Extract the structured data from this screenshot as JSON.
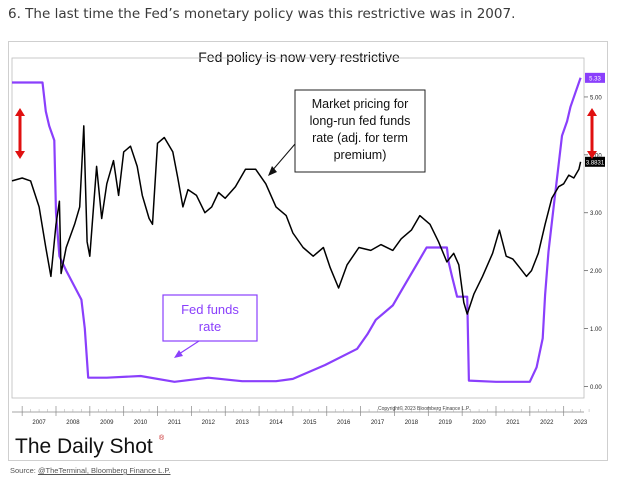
{
  "headline": "6. The last time the Fed’s monetary policy was this restrictive was in 2007.",
  "source_prefix": "Source: ",
  "source_links": "@TheTerminal, Bloomberg Finance L.P.",
  "brand": "The Daily Shot",
  "brand_mark": "®",
  "copyright": "Copyright© 2023 Bloomberg Finance L.P.",
  "chart_data": {
    "type": "line",
    "title": "Fed policy is now very restrictive",
    "xlabel": "",
    "ylabel": "",
    "xlim": [
      2006.7,
      2023.6
    ],
    "ylim": [
      -0.2,
      5.5
    ],
    "x_ticks": [
      "2007",
      "2008",
      "2009",
      "2010",
      "2011",
      "2012",
      "2013",
      "2014",
      "2015",
      "2016",
      "2017",
      "2018",
      "2019",
      "2020",
      "2021",
      "2022",
      "2023"
    ],
    "y_ticks": [
      "0.00",
      "1.00",
      "2.00",
      "3.00",
      "4.00",
      "5.00"
    ],
    "grid": false,
    "annotations": [
      {
        "id": "market",
        "text": "Market pricing for long-run fed funds rate (adj. for term premium)",
        "lines": [
          "Market pricing for",
          "long-run fed funds",
          "rate (adj. for term",
          "premium)"
        ]
      },
      {
        "id": "ffr",
        "text": "Fed funds rate",
        "lines": [
          "Fed funds",
          "rate"
        ]
      }
    ],
    "end_labels": [
      {
        "series": "Fed funds rate",
        "text": "5.33"
      },
      {
        "series": "Market pricing",
        "text": "3.8831"
      }
    ],
    "series": [
      {
        "name": "Fed funds rate",
        "color": "#8a3ffc",
        "points": [
          [
            2006.7,
            5.25
          ],
          [
            2007.6,
            5.25
          ],
          [
            2007.7,
            4.75
          ],
          [
            2007.8,
            4.5
          ],
          [
            2007.95,
            4.25
          ],
          [
            2008.0,
            3.0
          ],
          [
            2008.1,
            2.25
          ],
          [
            2008.3,
            2.0
          ],
          [
            2008.75,
            1.5
          ],
          [
            2008.85,
            1.0
          ],
          [
            2008.95,
            0.15
          ],
          [
            2009.5,
            0.15
          ],
          [
            2010.5,
            0.18
          ],
          [
            2011.5,
            0.08
          ],
          [
            2012.5,
            0.15
          ],
          [
            2013.5,
            0.09
          ],
          [
            2014.5,
            0.09
          ],
          [
            2015.0,
            0.13
          ],
          [
            2015.95,
            0.37
          ],
          [
            2016.9,
            0.65
          ],
          [
            2017.2,
            0.9
          ],
          [
            2017.45,
            1.15
          ],
          [
            2017.95,
            1.4
          ],
          [
            2018.2,
            1.65
          ],
          [
            2018.45,
            1.9
          ],
          [
            2018.7,
            2.15
          ],
          [
            2018.95,
            2.4
          ],
          [
            2019.55,
            2.4
          ],
          [
            2019.6,
            2.15
          ],
          [
            2019.7,
            1.9
          ],
          [
            2019.85,
            1.55
          ],
          [
            2020.15,
            1.55
          ],
          [
            2020.2,
            0.1
          ],
          [
            2021.0,
            0.08
          ],
          [
            2022.0,
            0.08
          ],
          [
            2022.2,
            0.33
          ],
          [
            2022.38,
            0.83
          ],
          [
            2022.45,
            1.58
          ],
          [
            2022.55,
            2.33
          ],
          [
            2022.7,
            3.08
          ],
          [
            2022.85,
            3.83
          ],
          [
            2022.95,
            4.33
          ],
          [
            2023.1,
            4.58
          ],
          [
            2023.2,
            4.83
          ],
          [
            2023.35,
            5.08
          ],
          [
            2023.5,
            5.33
          ]
        ]
      },
      {
        "name": "Market pricing for long-run fed funds rate (adj. for term premium)",
        "color": "#000000",
        "points": [
          [
            2006.7,
            3.55
          ],
          [
            2007.0,
            3.6
          ],
          [
            2007.25,
            3.55
          ],
          [
            2007.5,
            3.1
          ],
          [
            2007.7,
            2.4
          ],
          [
            2007.85,
            1.9
          ],
          [
            2008.0,
            2.8
          ],
          [
            2008.1,
            3.2
          ],
          [
            2008.15,
            1.95
          ],
          [
            2008.3,
            2.4
          ],
          [
            2008.55,
            2.8
          ],
          [
            2008.7,
            3.1
          ],
          [
            2008.82,
            4.5
          ],
          [
            2008.92,
            2.5
          ],
          [
            2009.0,
            2.25
          ],
          [
            2009.2,
            3.8
          ],
          [
            2009.35,
            2.9
          ],
          [
            2009.5,
            3.5
          ],
          [
            2009.7,
            3.9
          ],
          [
            2009.85,
            3.3
          ],
          [
            2010.0,
            4.05
          ],
          [
            2010.2,
            4.15
          ],
          [
            2010.4,
            3.8
          ],
          [
            2010.55,
            3.3
          ],
          [
            2010.75,
            2.9
          ],
          [
            2010.85,
            2.8
          ],
          [
            2011.0,
            4.2
          ],
          [
            2011.2,
            4.3
          ],
          [
            2011.45,
            4.05
          ],
          [
            2011.6,
            3.6
          ],
          [
            2011.75,
            3.1
          ],
          [
            2011.9,
            3.4
          ],
          [
            2012.15,
            3.3
          ],
          [
            2012.4,
            3.0
          ],
          [
            2012.6,
            3.1
          ],
          [
            2012.8,
            3.35
          ],
          [
            2013.0,
            3.25
          ],
          [
            2013.3,
            3.45
          ],
          [
            2013.6,
            3.75
          ],
          [
            2013.9,
            3.75
          ],
          [
            2014.2,
            3.5
          ],
          [
            2014.5,
            3.1
          ],
          [
            2014.8,
            2.95
          ],
          [
            2015.0,
            2.65
          ],
          [
            2015.3,
            2.4
          ],
          [
            2015.6,
            2.25
          ],
          [
            2015.9,
            2.4
          ],
          [
            2016.1,
            2.05
          ],
          [
            2016.35,
            1.7
          ],
          [
            2016.6,
            2.1
          ],
          [
            2016.95,
            2.4
          ],
          [
            2017.3,
            2.35
          ],
          [
            2017.6,
            2.45
          ],
          [
            2017.95,
            2.35
          ],
          [
            2018.2,
            2.55
          ],
          [
            2018.5,
            2.7
          ],
          [
            2018.75,
            2.95
          ],
          [
            2019.05,
            2.8
          ],
          [
            2019.3,
            2.5
          ],
          [
            2019.55,
            2.15
          ],
          [
            2019.75,
            2.3
          ],
          [
            2019.9,
            2.1
          ],
          [
            2020.05,
            1.45
          ],
          [
            2020.15,
            1.25
          ],
          [
            2020.35,
            1.6
          ],
          [
            2020.6,
            1.9
          ],
          [
            2020.9,
            2.3
          ],
          [
            2021.1,
            2.7
          ],
          [
            2021.3,
            2.25
          ],
          [
            2021.5,
            2.2
          ],
          [
            2021.7,
            2.05
          ],
          [
            2021.9,
            1.9
          ],
          [
            2022.05,
            2.0
          ],
          [
            2022.25,
            2.3
          ],
          [
            2022.45,
            2.8
          ],
          [
            2022.65,
            3.25
          ],
          [
            2022.85,
            3.45
          ],
          [
            2023.0,
            3.5
          ],
          [
            2023.15,
            3.65
          ],
          [
            2023.3,
            3.6
          ],
          [
            2023.45,
            3.75
          ],
          [
            2023.5,
            3.88
          ]
        ]
      }
    ]
  }
}
